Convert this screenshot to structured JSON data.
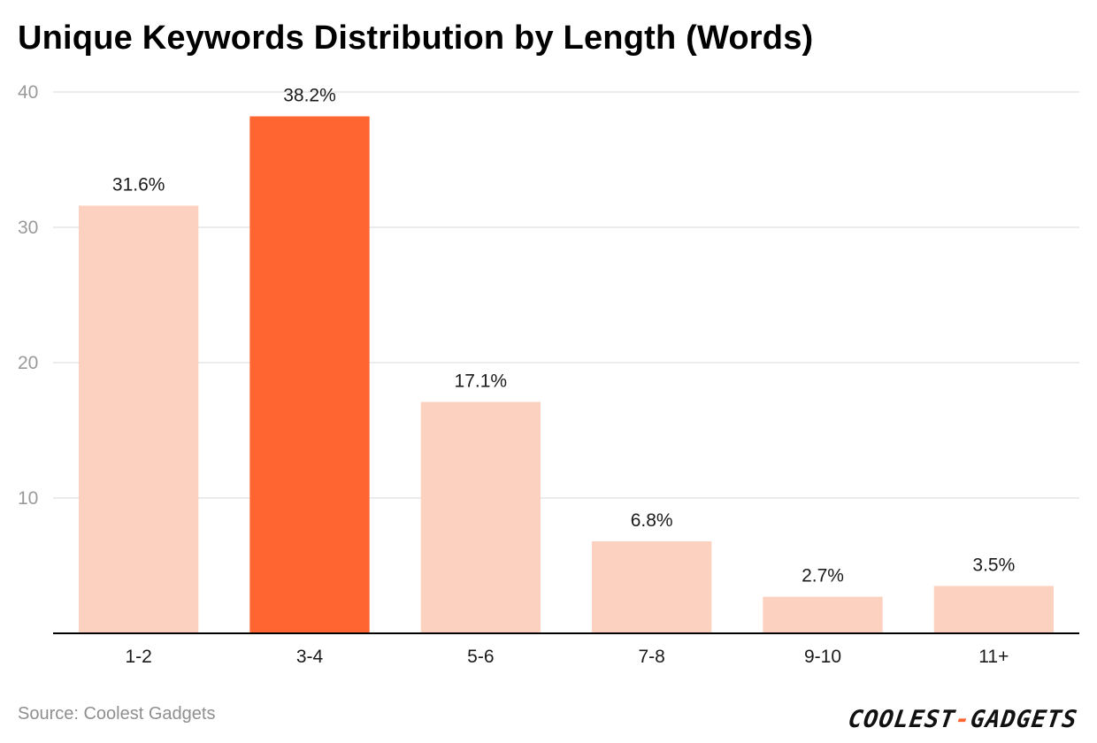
{
  "chart_data": {
    "type": "bar",
    "title": "Unique Keywords Distribution by Length (Words)",
    "xlabel": "",
    "ylabel": "",
    "categories": [
      "1-2",
      "3-4",
      "5-6",
      "7-8",
      "9-10",
      "11+"
    ],
    "values": [
      31.6,
      38.2,
      17.1,
      6.8,
      2.7,
      3.5
    ],
    "data_labels": [
      "31.6%",
      "38.2%",
      "17.1%",
      "6.8%",
      "2.7%",
      "3.5%"
    ],
    "highlight_index": 1,
    "ylim": [
      0,
      40
    ],
    "yticks": [
      10,
      20,
      30,
      40
    ],
    "grid": true,
    "colors": {
      "bar": "#fdd1c0",
      "highlight": "#ff6530",
      "grid": "#e6e6e6",
      "axis": "#000000"
    }
  },
  "footer": {
    "source": "Source: Coolest Gadgets",
    "logo_left": "COOLEST",
    "logo_dash": "-",
    "logo_right": "GADGETS"
  }
}
